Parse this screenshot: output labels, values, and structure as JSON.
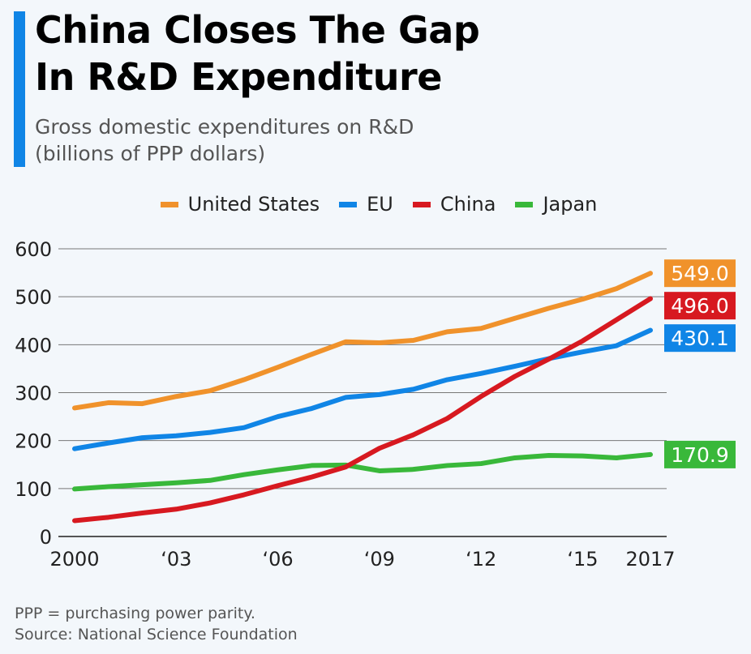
{
  "header": {
    "title_line1": "China Closes The Gap",
    "title_line2": "In R&D Expenditure",
    "subtitle_line1": "Gross domestic expenditures on R&D",
    "subtitle_line2": "(billions of PPP dollars)",
    "accent_color": "#1085e6"
  },
  "footer": {
    "note": "PPP = purchasing power parity.",
    "source": "Source: National Science Foundation"
  },
  "chart_data": {
    "type": "line",
    "title": "China Closes The Gap In R&D Expenditure",
    "subtitle": "Gross domestic expenditures on R&D (billions of PPP dollars)",
    "xlabel": "",
    "ylabel": "",
    "x": [
      2000,
      2001,
      2002,
      2003,
      2004,
      2005,
      2006,
      2007,
      2008,
      2009,
      2010,
      2011,
      2012,
      2013,
      2014,
      2015,
      2016,
      2017
    ],
    "x_ticks": [
      2000,
      2003,
      2006,
      2009,
      2012,
      2015,
      2017
    ],
    "x_tick_labels": [
      "2000",
      "‘03",
      "‘06",
      "‘09",
      "‘12",
      "‘15",
      "2017"
    ],
    "ylim": [
      0,
      600
    ],
    "y_ticks": [
      0,
      100,
      200,
      300,
      400,
      500,
      600
    ],
    "y_tick_labels": [
      "0",
      "100",
      "200",
      "300",
      "400",
      "500",
      "600"
    ],
    "grid": true,
    "legend_position": "top-center",
    "series": [
      {
        "name": "United States",
        "color": "#f0922b",
        "end_label": "549.0",
        "values": [
          268,
          279,
          277,
          292,
          304,
          327,
          353,
          380,
          406,
          404,
          409,
          427,
          434,
          455,
          476,
          495,
          517,
          549.0
        ]
      },
      {
        "name": "EU",
        "color": "#1085e6",
        "end_label": "430.1",
        "values": [
          183,
          195,
          206,
          210,
          217,
          227,
          250,
          267,
          290,
          296,
          307,
          327,
          340,
          355,
          371,
          385,
          398,
          430.1
        ]
      },
      {
        "name": "China",
        "color": "#d71920",
        "end_label": "496.0",
        "values": [
          33,
          40,
          49,
          57,
          70,
          87,
          106,
          124,
          145,
          184,
          212,
          246,
          292,
          334,
          370,
          408,
          452,
          496.0
        ]
      },
      {
        "name": "Japan",
        "color": "#39b83a",
        "end_label": "170.9",
        "values": [
          99,
          104,
          108,
          112,
          117,
          129,
          139,
          148,
          149,
          137,
          140,
          148,
          152,
          164,
          169,
          168,
          164,
          170.9
        ]
      }
    ]
  }
}
